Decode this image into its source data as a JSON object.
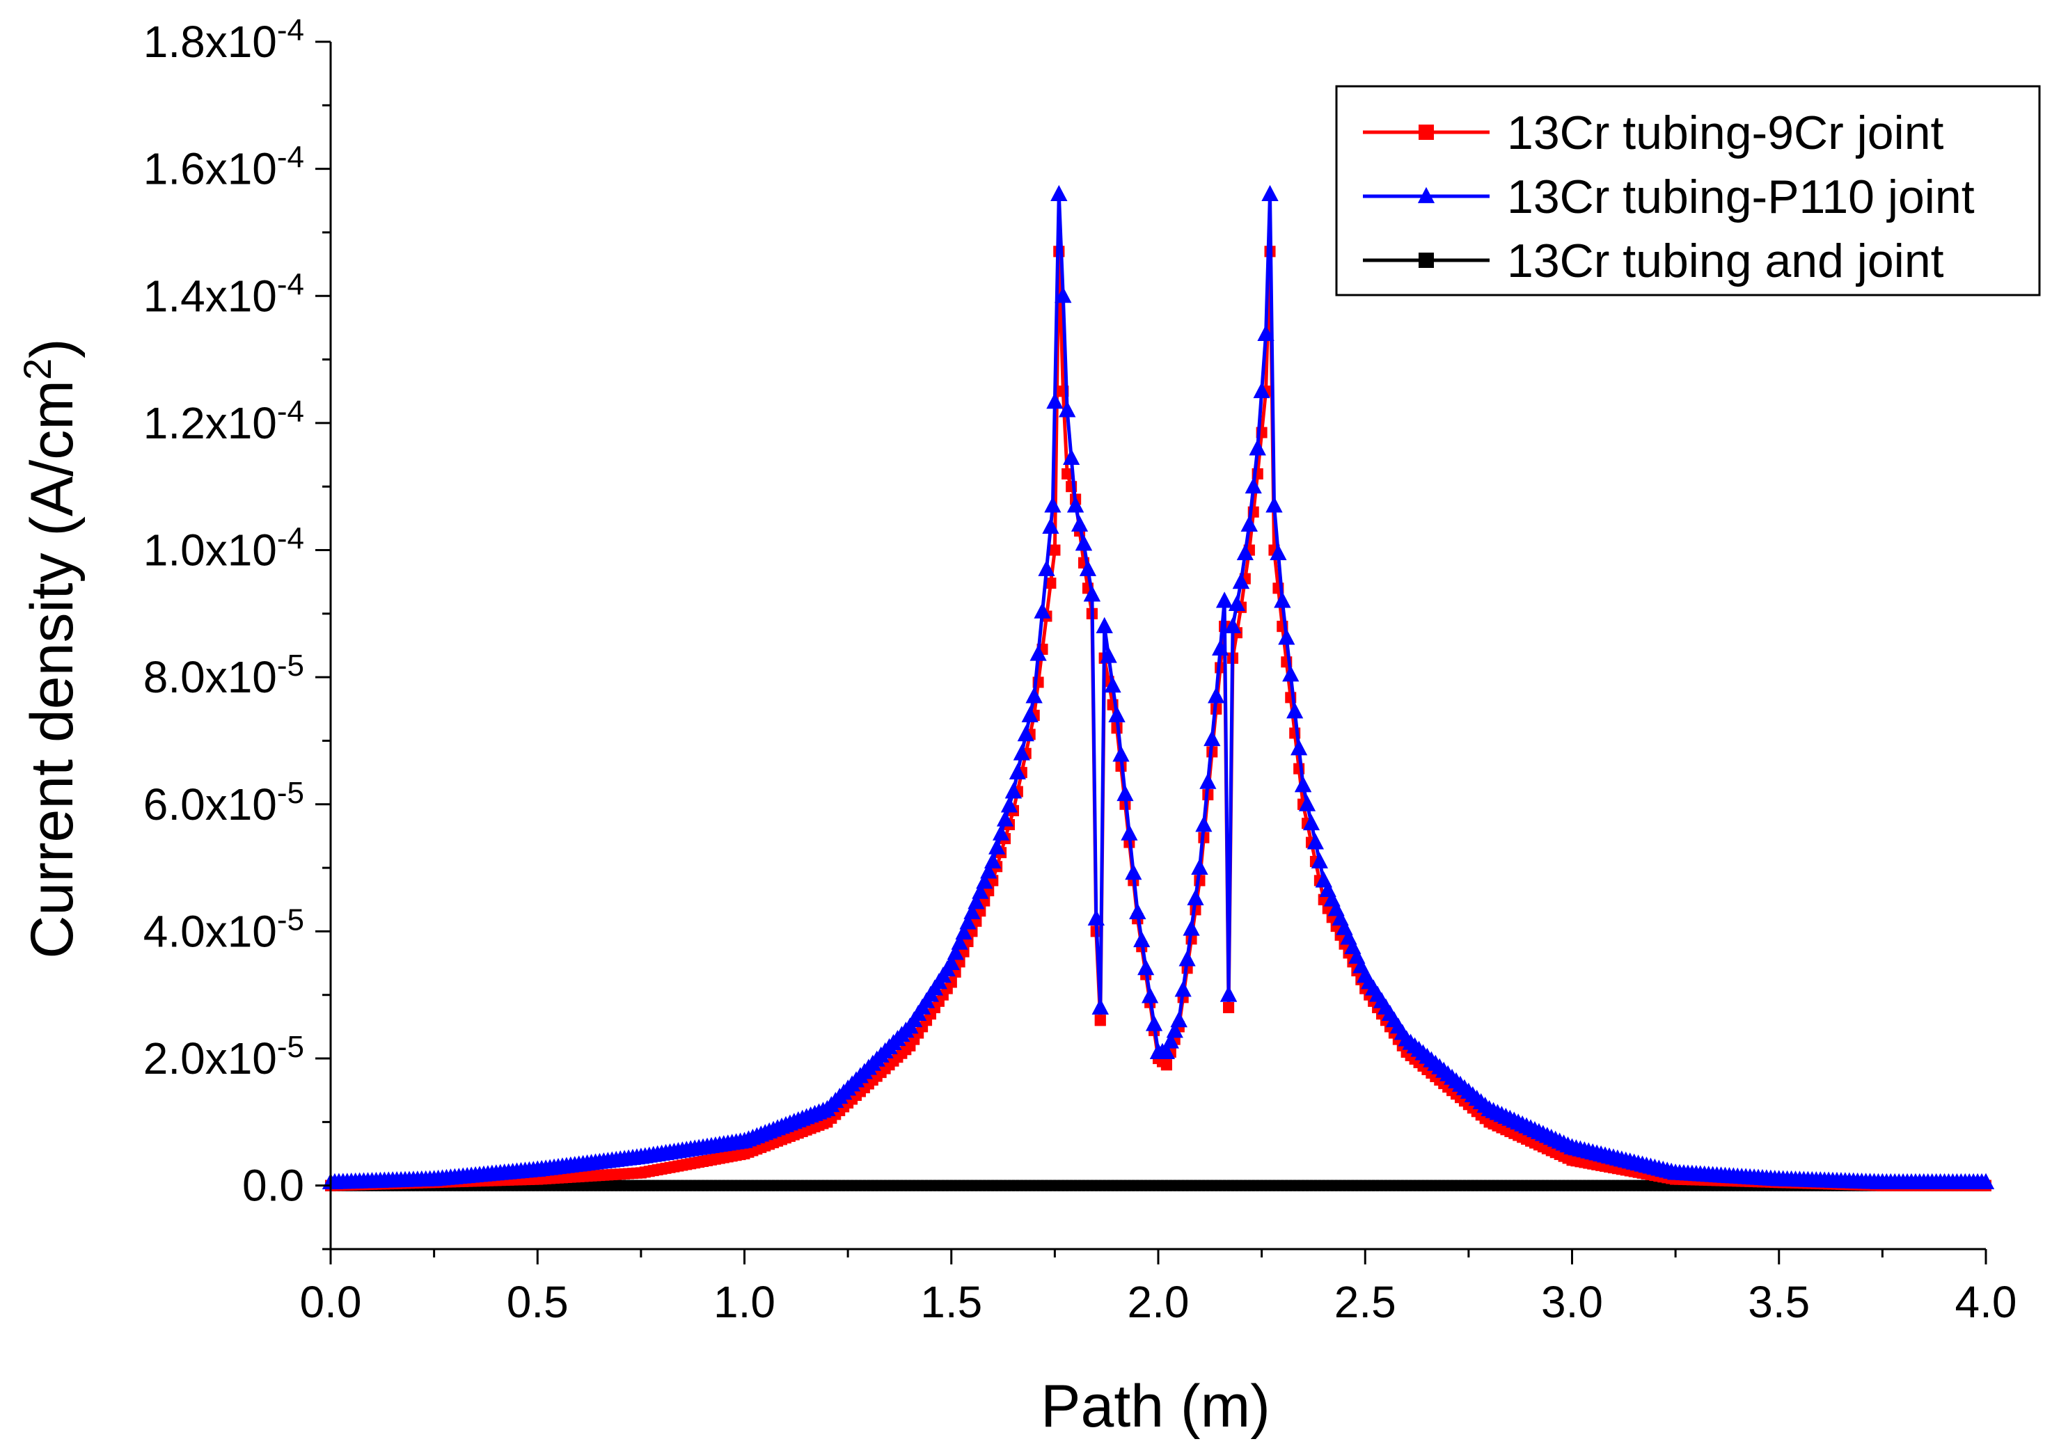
{
  "chart_data": {
    "type": "line",
    "title": "",
    "xlabel": "Path (m)",
    "ylabel_main": "Current density (A/cm",
    "ylabel_sup": "2",
    "ylabel_end": ")",
    "xlim": [
      0,
      4.0
    ],
    "ylim": [
      -1e-05,
      0.00018
    ],
    "xticks": [
      0,
      0.5,
      1.0,
      1.5,
      2.0,
      2.5,
      3.0,
      3.5,
      4.0
    ],
    "xtick_labels": [
      "0.0",
      "0.5",
      "1.0",
      "1.5",
      "2.0",
      "2.5",
      "3.0",
      "3.5",
      "4.0"
    ],
    "yticks": [
      {
        "value": 0.00018,
        "mant": "1.8x10",
        "exp": "-4"
      },
      {
        "value": 0.00016,
        "mant": "1.6x10",
        "exp": "-4"
      },
      {
        "value": 0.00014,
        "mant": "1.4x10",
        "exp": "-4"
      },
      {
        "value": 0.00012,
        "mant": "1.2x10",
        "exp": "-4"
      },
      {
        "value": 0.0001,
        "mant": "1.0x10",
        "exp": "-4"
      },
      {
        "value": 8e-05,
        "mant": "8.0x10",
        "exp": "-5"
      },
      {
        "value": 6e-05,
        "mant": "6.0x10",
        "exp": "-5"
      },
      {
        "value": 4e-05,
        "mant": "4.0x10",
        "exp": "-5"
      },
      {
        "value": 2e-05,
        "mant": "2.0x10",
        "exp": "-5"
      },
      {
        "value": 0,
        "mant": "0.0",
        "exp": ""
      }
    ],
    "legend_position": "top-right",
    "series": [
      {
        "name": "13Cr tubing-9Cr joint",
        "color": "#ff0000",
        "marker": "square",
        "x": [
          0,
          0.25,
          0.5,
          0.75,
          1.0,
          1.2,
          1.4,
          1.5,
          1.6,
          1.65,
          1.7,
          1.75,
          1.76,
          1.77,
          1.78,
          1.8,
          1.82,
          1.84,
          1.85,
          1.86,
          1.87,
          1.9,
          1.95,
          2.0,
          2.02,
          2.05,
          2.1,
          2.14,
          2.16,
          2.17,
          2.18,
          2.2,
          2.22,
          2.24,
          2.26,
          2.27,
          2.28,
          2.3,
          2.35,
          2.4,
          2.5,
          2.6,
          2.8,
          3.0,
          3.25,
          3.5,
          3.75,
          4.0
        ],
        "y": [
          0,
          5e-07,
          1e-06,
          2e-06,
          5e-06,
          1e-05,
          2.2e-05,
          3.2e-05,
          4.8e-05,
          5.9e-05,
          7.4e-05,
          0.0001,
          0.000147,
          0.000125,
          0.000112,
          0.000108,
          9.8e-05,
          9e-05,
          4e-05,
          2.6e-05,
          8.3e-05,
          7.2e-05,
          4.2e-05,
          2e-05,
          1.9e-05,
          2.5e-05,
          4.8e-05,
          7.5e-05,
          8.8e-05,
          2.8e-05,
          8.3e-05,
          9.1e-05,
          0.0001,
          0.000112,
          0.000125,
          0.000147,
          0.0001,
          8.8e-05,
          6e-05,
          4.5e-05,
          3.1e-05,
          2.1e-05,
          1e-05,
          4e-06,
          1e-06,
          5e-07,
          0,
          0
        ]
      },
      {
        "name": "13Cr tubing-P110 joint",
        "color": "#0000ff",
        "marker": "triangle",
        "x": [
          0,
          0.25,
          0.5,
          0.75,
          1.0,
          1.2,
          1.4,
          1.5,
          1.6,
          1.65,
          1.7,
          1.745,
          1.76,
          1.77,
          1.78,
          1.8,
          1.82,
          1.84,
          1.85,
          1.86,
          1.87,
          1.9,
          1.95,
          2.0,
          2.02,
          2.05,
          2.1,
          2.14,
          2.16,
          2.17,
          2.18,
          2.2,
          2.22,
          2.24,
          2.26,
          2.27,
          2.28,
          2.3,
          2.35,
          2.4,
          2.5,
          2.6,
          2.8,
          3.0,
          3.25,
          3.5,
          3.75,
          4.0
        ],
        "y": [
          5e-07,
          1e-06,
          2.5e-06,
          4.5e-06,
          7e-06,
          1.2e-05,
          2.5e-05,
          3.5e-05,
          5.1e-05,
          6.2e-05,
          7.7e-05,
          0.000107,
          0.000156,
          0.00014,
          0.000122,
          0.000107,
          0.000101,
          9.3e-05,
          4.2e-05,
          2.8e-05,
          8.8e-05,
          7.4e-05,
          4.3e-05,
          2.1e-05,
          2.1e-05,
          2.6e-05,
          5e-05,
          7.7e-05,
          9.2e-05,
          3e-05,
          8.8e-05,
          9.5e-05,
          0.000104,
          0.000116,
          0.000134,
          0.000156,
          0.000107,
          9.2e-05,
          6.3e-05,
          4.8e-05,
          3.3e-05,
          2.3e-05,
          1.2e-05,
          6e-06,
          2e-06,
          1e-06,
          5e-07,
          5e-07
        ]
      },
      {
        "name": "13Cr tubing and joint",
        "color": "#000000",
        "marker": "square",
        "x": [
          0,
          4.0
        ],
        "y": [
          0,
          0
        ]
      }
    ]
  }
}
